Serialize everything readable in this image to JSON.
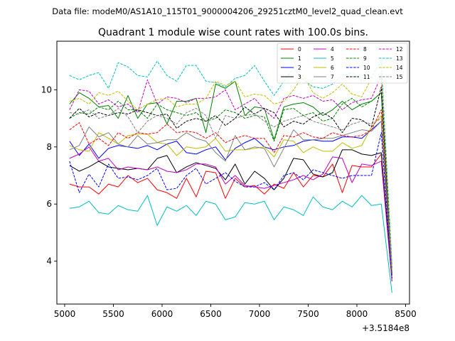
{
  "header": {
    "suptitle": "Data file: modeM0/AS1A10_115T01_9000004206_29251cztM0_level2_quad_clean.evt"
  },
  "chart_data": {
    "type": "line",
    "title": "Quadrant 1 module wise count rates with 100.0s bins.",
    "xlabel": "",
    "ylabel": "",
    "x_offset_label": "+3.5184e8",
    "xlim": [
      4920,
      8540
    ],
    "ylim": [
      2.5,
      11.7
    ],
    "x_ticks": [
      5000,
      5500,
      6000,
      6500,
      7000,
      7500,
      8000,
      8500
    ],
    "y_ticks": [
      4,
      6,
      8,
      10
    ],
    "grid": false,
    "legend_position": "top-right",
    "x": [
      5050,
      5150,
      5250,
      5350,
      5450,
      5550,
      5650,
      5750,
      5850,
      5950,
      6050,
      6150,
      6250,
      6350,
      6450,
      6550,
      6650,
      6750,
      6850,
      6950,
      7050,
      7150,
      7250,
      7350,
      7450,
      7550,
      7650,
      7750,
      7850,
      7950,
      8050,
      8150,
      8250,
      8360
    ],
    "series": [
      {
        "name": "0",
        "color": "#ff0000",
        "dash": "solid",
        "values": [
          6.7,
          6.6,
          6.6,
          6.35,
          6.7,
          6.6,
          7.0,
          6.75,
          6.9,
          6.5,
          6.4,
          6.2,
          6.9,
          6.25,
          7.15,
          7.1,
          6.2,
          6.9,
          6.6,
          6.65,
          6.35,
          6.7,
          6.55,
          7.1,
          6.6,
          7.0,
          6.95,
          7.4,
          6.4,
          7.35,
          7.3,
          7.3,
          7.75,
          3.3
        ]
      },
      {
        "name": "1",
        "color": "#008000",
        "dash": "solid",
        "values": [
          9.5,
          9.9,
          9.7,
          9.4,
          9.45,
          9.0,
          9.8,
          9.0,
          9.5,
          9.55,
          8.8,
          9.6,
          9.6,
          9.7,
          8.5,
          10.2,
          10.05,
          10.3,
          9.1,
          9.4,
          9.35,
          8.25,
          9.4,
          9.5,
          9.55,
          9.4,
          9.1,
          9.3,
          9.6,
          9.3,
          9.5,
          9.6,
          9.9,
          3.6
        ]
      },
      {
        "name": "2",
        "color": "#0000ff",
        "dash": "solid",
        "values": [
          8.2,
          7.7,
          8.1,
          7.6,
          7.95,
          8.05,
          8.0,
          7.95,
          8.05,
          7.9,
          8.1,
          8.2,
          7.8,
          7.75,
          7.9,
          8.0,
          7.55,
          7.95,
          8.15,
          8.3,
          8.0,
          7.9,
          8.0,
          8.05,
          8.2,
          8.25,
          8.2,
          8.2,
          8.35,
          8.35,
          8.3,
          8.6,
          8.9,
          3.5
        ]
      },
      {
        "name": "3",
        "color": "#000000",
        "dash": "solid",
        "values": [
          7.35,
          7.15,
          7.3,
          7.5,
          7.3,
          7.25,
          7.2,
          7.25,
          7.2,
          7.6,
          7.7,
          7.1,
          7.3,
          7.45,
          7.35,
          7.25,
          6.85,
          7.4,
          6.7,
          7.15,
          6.9,
          6.5,
          6.9,
          7.6,
          7.55,
          7.05,
          6.95,
          7.1,
          7.9,
          7.9,
          7.75,
          7.7,
          7.8,
          3.4
        ]
      },
      {
        "name": "4",
        "color": "#c000c0",
        "dash": "solid",
        "values": [
          7.6,
          7.75,
          8.0,
          7.5,
          7.6,
          7.2,
          7.3,
          7.25,
          7.2,
          7.3,
          7.15,
          7.1,
          7.2,
          7.4,
          7.4,
          7.3,
          6.7,
          7.0,
          6.65,
          6.6,
          6.55,
          6.65,
          6.75,
          6.85,
          7.0,
          6.85,
          7.05,
          7.65,
          7.6,
          6.75,
          7.4,
          7.35,
          7.5,
          3.3
        ]
      },
      {
        "name": "5",
        "color": "#00bfbf",
        "dash": "solid",
        "values": [
          5.85,
          5.9,
          6.1,
          5.7,
          5.65,
          5.95,
          5.8,
          5.75,
          6.3,
          5.25,
          5.9,
          5.75,
          5.95,
          5.6,
          6.1,
          6.0,
          5.45,
          5.55,
          6.05,
          6.0,
          6.1,
          5.45,
          5.9,
          5.8,
          5.6,
          6.25,
          5.9,
          5.8,
          6.1,
          5.9,
          6.3,
          5.95,
          6.0,
          2.9
        ]
      },
      {
        "name": "6",
        "color": "#bfbf00",
        "dash": "solid",
        "values": [
          8.05,
          7.9,
          7.85,
          8.5,
          8.3,
          8.1,
          8.4,
          8.45,
          8.45,
          8.15,
          8.1,
          7.7,
          8.0,
          7.95,
          8.0,
          8.3,
          7.85,
          7.9,
          7.9,
          7.95,
          8.0,
          7.65,
          8.25,
          8.2,
          7.8,
          8.0,
          7.85,
          7.85,
          8.15,
          7.95,
          8.05,
          8.7,
          9.1,
          3.4
        ]
      },
      {
        "name": "7",
        "color": "#808080",
        "dash": "solid",
        "values": [
          7.9,
          8.05,
          8.7,
          8.35,
          8.5,
          8.1,
          8.0,
          8.4,
          8.1,
          8.15,
          8.25,
          8.25,
          8.5,
          8.3,
          8.2,
          7.8,
          7.5,
          8.4,
          7.9,
          8.0,
          7.95,
          7.3,
          7.95,
          8.6,
          8.25,
          8.25,
          8.3,
          8.3,
          8.4,
          8.5,
          8.6,
          8.55,
          8.9,
          3.5
        ]
      },
      {
        "name": "8",
        "color": "#ff0000",
        "dash": "dashed",
        "values": [
          8.6,
          8.85,
          8.1,
          8.3,
          8.05,
          8.5,
          8.3,
          8.5,
          8.45,
          8.5,
          8.8,
          8.5,
          8.55,
          8.5,
          8.3,
          8.5,
          8.15,
          8.3,
          8.4,
          8.3,
          8.3,
          7.8,
          8.4,
          8.35,
          8.5,
          8.35,
          8.3,
          8.5,
          8.4,
          8.35,
          8.4,
          8.6,
          9.3,
          3.5
        ]
      },
      {
        "name": "9",
        "color": "#008000",
        "dash": "dashed",
        "values": [
          9.0,
          9.2,
          9.15,
          9.4,
          9.3,
          9.6,
          9.3,
          9.3,
          9.0,
          9.5,
          9.3,
          9.2,
          9.1,
          9.2,
          8.9,
          9.0,
          9.3,
          9.2,
          9.0,
          9.1,
          9.05,
          8.2,
          9.3,
          9.35,
          9.1,
          9.2,
          8.9,
          9.0,
          9.5,
          9.7,
          9.4,
          9.6,
          9.9,
          3.6
        ]
      },
      {
        "name": "10",
        "color": "#0000ff",
        "dash": "dashed",
        "values": [
          7.5,
          6.4,
          7.05,
          6.6,
          7.4,
          6.9,
          6.95,
          6.85,
          7.0,
          7.25,
          6.5,
          6.55,
          7.0,
          7.25,
          6.7,
          6.9,
          7.1,
          6.8,
          6.6,
          6.6,
          6.75,
          6.5,
          7.0,
          7.1,
          6.85,
          7.2,
          7.1,
          7.0,
          6.9,
          7.0,
          7.0,
          7.0,
          8.5,
          3.4
        ]
      },
      {
        "name": "11",
        "color": "#000000",
        "dash": "dashed",
        "values": [
          9.0,
          9.35,
          9.05,
          9.2,
          9.1,
          9.2,
          9.15,
          9.3,
          9.2,
          9.1,
          9.15,
          8.65,
          8.9,
          9.0,
          8.9,
          9.1,
          8.75,
          9.0,
          9.4,
          9.15,
          9.35,
          9.2,
          8.7,
          8.9,
          8.8,
          9.05,
          9.2,
          9.0,
          8.5,
          9.0,
          8.95,
          8.7,
          10.1,
          3.7
        ]
      },
      {
        "name": "12",
        "color": "#c000c0",
        "dash": "dashed",
        "values": [
          9.3,
          10.0,
          9.95,
          9.5,
          9.65,
          9.4,
          9.5,
          9.2,
          10.35,
          9.5,
          9.75,
          9.7,
          9.55,
          9.7,
          9.7,
          9.75,
          10.0,
          9.3,
          9.5,
          9.7,
          9.3,
          9.0,
          9.7,
          9.8,
          9.7,
          9.8,
          9.6,
          9.65,
          9.3,
          9.55,
          9.65,
          9.7,
          10.5,
          3.8
        ]
      },
      {
        "name": "13",
        "color": "#00bfbf",
        "dash": "dashed",
        "values": [
          10.5,
          10.35,
          10.5,
          10.6,
          10.05,
          10.95,
          10.8,
          10.5,
          10.45,
          11.0,
          10.5,
          10.3,
          10.85,
          10.85,
          10.3,
          10.25,
          10.1,
          10.4,
          10.5,
          10.85,
          10.3,
          9.8,
          10.3,
          10.75,
          10.35,
          10.1,
          10.05,
          10.2,
          10.5,
          10.6,
          10.3,
          10.45,
          11.0,
          3.9
        ]
      },
      {
        "name": "14",
        "color": "#bfbf00",
        "dash": "dashed",
        "values": [
          9.6,
          9.7,
          9.5,
          9.9,
          9.8,
          9.95,
          9.6,
          9.3,
          9.5,
          9.65,
          9.7,
          9.4,
          9.5,
          9.5,
          9.7,
          10.3,
          10.15,
          10.3,
          9.75,
          9.85,
          9.8,
          9.5,
          9.6,
          10.0,
          10.5,
          9.9,
          9.7,
          9.9,
          10.2,
          9.85,
          9.75,
          10.4,
          10.6,
          3.7
        ]
      },
      {
        "name": "15",
        "color": "#808080",
        "dash": "dashed",
        "values": [
          9.2,
          9.15,
          9.3,
          9.0,
          9.1,
          9.35,
          9.05,
          8.5,
          8.9,
          9.1,
          9.0,
          8.8,
          9.2,
          9.35,
          9.1,
          8.3,
          9.1,
          9.0,
          9.1,
          9.15,
          8.9,
          8.7,
          8.9,
          9.0,
          9.1,
          8.9,
          8.8,
          8.7,
          8.6,
          8.8,
          8.9,
          8.8,
          9.0,
          3.6
        ]
      }
    ]
  }
}
